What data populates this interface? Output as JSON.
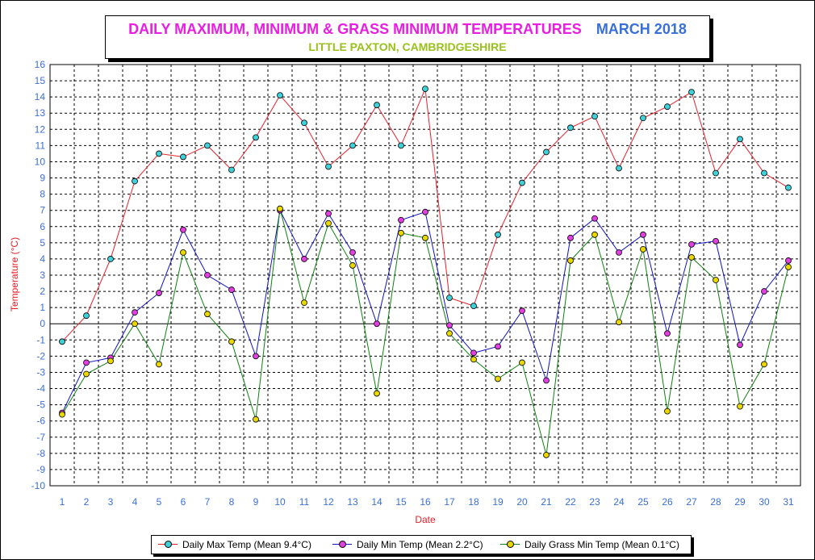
{
  "title": {
    "main": "DAILY MAXIMUM, MINIMUM & GRASS MINIMUM TEMPERATURES",
    "month": "MARCH 2018",
    "subtitle": "LITTLE PAXTON, CAMBRIDGESHIRE"
  },
  "colors": {
    "title_main": "#e81ee0",
    "title_month": "#3a6fd8",
    "subtitle": "#9ac01c",
    "axis_text": "#3a6fd8",
    "axis_label": "#e8202a"
  },
  "chart_data": {
    "type": "line",
    "xlabel": "Date",
    "ylabel": "Temperature (°C)",
    "ylim": [
      -10,
      16
    ],
    "yticks": [
      16,
      15,
      14,
      13,
      12,
      11,
      10,
      9,
      8,
      7,
      6,
      5,
      4,
      3,
      2,
      1,
      0,
      -1,
      -2,
      -3,
      -4,
      -5,
      -6,
      -7,
      -8,
      -9,
      -10
    ],
    "x": [
      1,
      2,
      3,
      4,
      5,
      6,
      7,
      8,
      9,
      10,
      11,
      12,
      13,
      14,
      15,
      16,
      17,
      18,
      19,
      20,
      21,
      22,
      23,
      24,
      25,
      26,
      27,
      28,
      29,
      30,
      31
    ],
    "grid": true,
    "legend_position": "bottom",
    "series": [
      {
        "name": "Daily Max Temp (Mean 9.4°C)",
        "line_color": "#e8202a",
        "marker_color": "#40d0d8",
        "values": [
          -1.1,
          0.5,
          4.0,
          8.8,
          10.5,
          10.3,
          11.0,
          9.5,
          11.5,
          14.1,
          12.4,
          9.7,
          11.0,
          13.5,
          11.0,
          14.5,
          1.6,
          1.1,
          5.5,
          8.7,
          10.6,
          12.1,
          12.8,
          9.6,
          12.7,
          13.4,
          14.3,
          9.3,
          11.4,
          9.3,
          8.4
        ]
      },
      {
        "name": "Daily Min Temp (Mean 2.2°C)",
        "line_color": "#1010c8",
        "marker_color": "#e040e0",
        "values": [
          -5.5,
          -2.4,
          -2.1,
          0.7,
          1.9,
          5.8,
          3.0,
          2.1,
          -2.0,
          7.0,
          4.0,
          6.8,
          4.4,
          0.0,
          6.4,
          6.9,
          -0.1,
          -1.8,
          -1.4,
          0.8,
          -3.5,
          5.3,
          6.5,
          4.4,
          5.5,
          -0.6,
          4.9,
          5.1,
          -1.3,
          2.0,
          3.9
        ]
      },
      {
        "name": "Daily Grass Min Temp (Mean 0.1°C)",
        "line_color": "#108010",
        "marker_color": "#e8d800",
        "values": [
          -5.6,
          -3.1,
          -2.3,
          0.0,
          -2.5,
          4.4,
          0.6,
          -1.1,
          -5.9,
          7.1,
          1.3,
          6.2,
          3.6,
          -4.3,
          5.6,
          5.3,
          -0.6,
          -2.2,
          -3.4,
          -2.4,
          -8.1,
          3.9,
          5.5,
          0.1,
          4.6,
          -5.4,
          4.1,
          2.7,
          -5.1,
          -2.5,
          3.5
        ]
      }
    ]
  }
}
